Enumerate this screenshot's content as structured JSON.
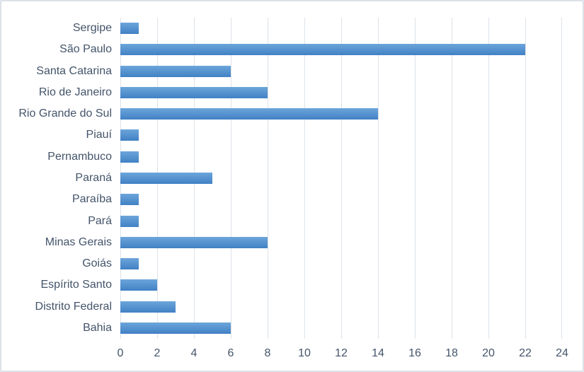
{
  "chart_data": {
    "type": "bar",
    "orientation": "horizontal",
    "title": "",
    "xlabel": "",
    "ylabel": "",
    "legend": "none",
    "grid": "vertical-gridlines",
    "categories": [
      "Sergipe",
      "São Paulo",
      "Santa Catarina",
      "Rio de Janeiro",
      "Rio Grande do Sul",
      "Piauí",
      "Pernambuco",
      "Paraná",
      "Paraíba",
      "Pará",
      "Minas Gerais",
      "Goiás",
      "Espírito Santo",
      "Distrito Federal",
      "Bahia"
    ],
    "values": [
      1,
      22,
      6,
      8,
      14,
      1,
      1,
      5,
      1,
      1,
      8,
      1,
      2,
      3,
      6
    ],
    "xlim": [
      0,
      24
    ],
    "x_ticks": [
      0,
      2,
      4,
      6,
      8,
      10,
      12,
      14,
      16,
      18,
      20,
      22,
      24
    ],
    "colors": {
      "bar_gradient_top": "#6CA5DB",
      "bar_gradient_bottom": "#4181C4",
      "gridline": "#dde2e8",
      "axis_text": "#44546a",
      "chart_border": "#dde1e8",
      "background": "#ffffff"
    }
  }
}
